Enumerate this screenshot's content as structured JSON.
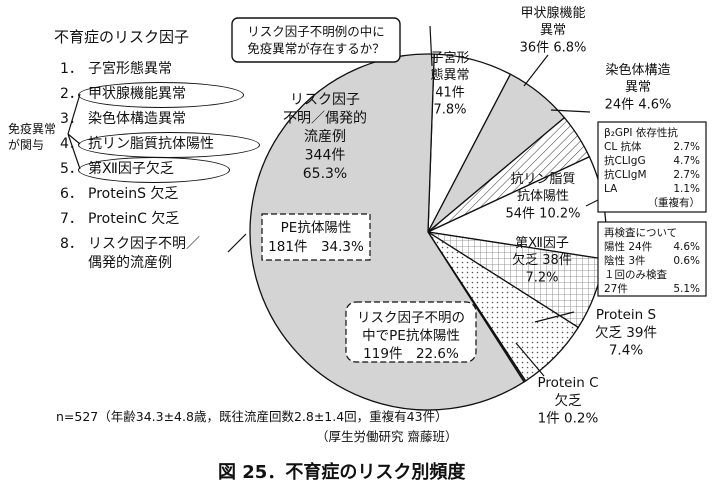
{
  "list_title": "不育症のリスク因子",
  "list": [
    {
      "num": "1．",
      "label": "子宮形態異常"
    },
    {
      "num": "2．",
      "label": "甲状腺機能異常"
    },
    {
      "num": "3．",
      "label": "染色体構造異常"
    },
    {
      "num": "4．",
      "label": "抗リン脂質抗体陽性"
    },
    {
      "num": "5．",
      "label": "第Ⅻ因子欠乏"
    },
    {
      "num": "6．",
      "label": "ProteinS 欠乏"
    },
    {
      "num": "7．",
      "label": "ProteinC 欠乏"
    },
    {
      "num": "8．",
      "label": "リスク因子不明／"
    },
    {
      "num": "",
      "label": "偶発的流産例"
    }
  ],
  "immune_label": [
    "免疫異常",
    "が関与"
  ],
  "callout": [
    "リスク因子不明例の中に",
    "免疫異常が存在するか？"
  ],
  "footnote": "n=527（年齢34.3±4.8歳，既往流産回数2.8±1.4回，重複有43件）",
  "source": "（厚生労働研究 齋藤班）",
  "figure_title": "図 25．不育症のリスク別頻度",
  "apl_detail": {
    "rows": [
      [
        "β₂GPI 依存性抗",
        ""
      ],
      [
        "CL 抗体",
        "2.7%"
      ],
      [
        "抗CLIgG",
        "4.7%"
      ],
      [
        "抗CLIgM",
        "2.7%"
      ],
      [
        "LA",
        "1.1%"
      ],
      [
        "",
        "（重複有）"
      ]
    ]
  },
  "retest": {
    "rows": [
      [
        "再検査について",
        ""
      ],
      [
        "陽性 24件",
        "4.6%"
      ],
      [
        "陰性 3件",
        "0.6%"
      ],
      [
        "１回のみ検査",
        ""
      ],
      [
        "27件",
        "5.1%"
      ]
    ]
  },
  "chart_data": {
    "type": "pie",
    "title": "不育症のリスク別頻度",
    "slices": [
      {
        "label": "子宮形態異常",
        "count": 41,
        "percent": 7.8,
        "fill": "#ffffff",
        "pattern": "none",
        "text": [
          "子宮形",
          "態異常",
          "41件",
          "7.8%"
        ]
      },
      {
        "label": "甲状腺機能異常",
        "count": 36,
        "percent": 6.8,
        "fill": "#d4d4d4",
        "pattern": "none",
        "text": [
          "甲状腺機能",
          "異常",
          "36件 6.8%"
        ]
      },
      {
        "label": "染色体構造異常",
        "count": 24,
        "percent": 4.6,
        "fill": "#ffffff",
        "pattern": "diagonal",
        "text": [
          "染色体構造",
          "異常",
          "24件 4.6%"
        ]
      },
      {
        "label": "抗リン脂質抗体陽性",
        "count": 54,
        "percent": 10.2,
        "fill": "#ffffff",
        "pattern": "none",
        "text": [
          "抗リン脂質",
          "抗体陽性",
          "54件 10.2%"
        ]
      },
      {
        "label": "第Ⅻ因子欠乏",
        "count": 38,
        "percent": 7.2,
        "fill": "#ffffff",
        "pattern": "grid",
        "text": [
          "第Ⅻ因子",
          "欠乏 38件",
          "7.2%"
        ]
      },
      {
        "label": "Protein S 欠乏",
        "count": 39,
        "percent": 7.4,
        "fill": "#ffffff",
        "pattern": "dots",
        "text": [
          "Protein S",
          "欠乏 39件",
          "7.4%"
        ]
      },
      {
        "label": "Protein C 欠乏",
        "count": 1,
        "percent": 0.2,
        "fill": "#333333",
        "pattern": "none",
        "text": [
          "Protein C",
          "欠乏",
          "1件 0.2%"
        ]
      },
      {
        "label": "リスク因子不明／偶発的流産例",
        "count": 344,
        "percent": 65.3,
        "fill": "#d4d4d4",
        "pattern": "none",
        "text": [
          "リスク因子",
          "不明／偶発的",
          "流産例",
          "344件",
          "65.3%"
        ]
      }
    ],
    "sub_boxes": [
      {
        "label": "PE抗体陽性",
        "text": [
          "PE抗体陽性",
          "181件　34.3%"
        ],
        "count": 181,
        "percent": 34.3
      },
      {
        "label": "リスク因子不明の中でPE抗体陽性",
        "text": [
          "リスク因子不明の",
          "中でPE抗体陽性",
          "119件　22.6%"
        ],
        "count": 119,
        "percent": 22.6
      }
    ]
  }
}
